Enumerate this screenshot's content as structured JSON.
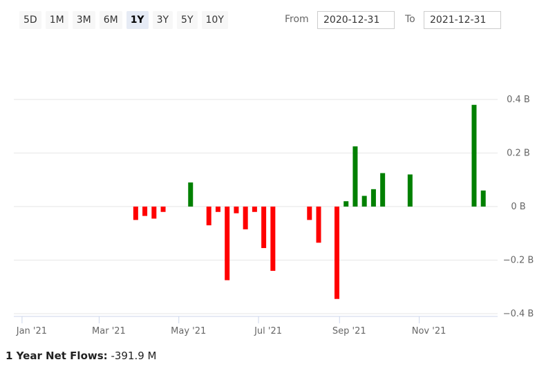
{
  "range_buttons": [
    {
      "label": "5D",
      "active": false
    },
    {
      "label": "1M",
      "active": false
    },
    {
      "label": "3M",
      "active": false
    },
    {
      "label": "6M",
      "active": false
    },
    {
      "label": "1Y",
      "active": true
    },
    {
      "label": "3Y",
      "active": false
    },
    {
      "label": "5Y",
      "active": false
    },
    {
      "label": "10Y",
      "active": false
    }
  ],
  "date_range": {
    "from_label": "From",
    "from_value": "2020-12-31",
    "to_label": "To",
    "to_value": "2021-12-31"
  },
  "footer": {
    "label": "1 Year Net Flows:",
    "value": "-391.9 M"
  },
  "colors": {
    "positive": "#008000",
    "negative": "#ff0000",
    "active_button": "#e6ebf5"
  },
  "chart_data": {
    "type": "bar",
    "title": "",
    "xlabel": "",
    "ylabel": "",
    "ylim": [
      -0.42,
      0.42
    ],
    "y_ticks": [
      {
        "value": 0.4,
        "label": "0.4 B"
      },
      {
        "value": 0.2,
        "label": "0.2 B"
      },
      {
        "value": 0,
        "label": "0 B"
      },
      {
        "value": -0.2,
        "label": "−0.2 B"
      },
      {
        "value": -0.4,
        "label": "−0.4 B"
      }
    ],
    "y_axis_position": "right",
    "grid": true,
    "x_ticks": [
      {
        "date": "2021-01-01",
        "label": "Jan '21"
      },
      {
        "date": "2021-03-01",
        "label": "Mar '21"
      },
      {
        "date": "2021-05-01",
        "label": "May '21"
      },
      {
        "date": "2021-07-01",
        "label": "Jul '21"
      },
      {
        "date": "2021-09-01",
        "label": "Sep '21"
      },
      {
        "date": "2021-11-01",
        "label": "Nov '21"
      }
    ],
    "x_range": [
      "2020-12-31",
      "2021-12-31"
    ],
    "bars": [
      {
        "date": "2021-03-29",
        "value": -0.05
      },
      {
        "date": "2021-04-05",
        "value": -0.035
      },
      {
        "date": "2021-04-12",
        "value": -0.045
      },
      {
        "date": "2021-04-19",
        "value": -0.02
      },
      {
        "date": "2021-05-10",
        "value": 0.09
      },
      {
        "date": "2021-05-24",
        "value": -0.07
      },
      {
        "date": "2021-05-31",
        "value": -0.02
      },
      {
        "date": "2021-06-07",
        "value": -0.275
      },
      {
        "date": "2021-06-14",
        "value": -0.025
      },
      {
        "date": "2021-06-21",
        "value": -0.085
      },
      {
        "date": "2021-06-28",
        "value": -0.02
      },
      {
        "date": "2021-07-05",
        "value": -0.155
      },
      {
        "date": "2021-07-12",
        "value": -0.24
      },
      {
        "date": "2021-08-09",
        "value": -0.05
      },
      {
        "date": "2021-08-16",
        "value": -0.135
      },
      {
        "date": "2021-08-30",
        "value": -0.345
      },
      {
        "date": "2021-09-06",
        "value": 0.02
      },
      {
        "date": "2021-09-13",
        "value": 0.225
      },
      {
        "date": "2021-09-20",
        "value": 0.04
      },
      {
        "date": "2021-09-27",
        "value": 0.065
      },
      {
        "date": "2021-10-04",
        "value": 0.125
      },
      {
        "date": "2021-10-25",
        "value": 0.12
      },
      {
        "date": "2021-12-13",
        "value": 0.38
      },
      {
        "date": "2021-12-20",
        "value": 0.06
      }
    ]
  }
}
